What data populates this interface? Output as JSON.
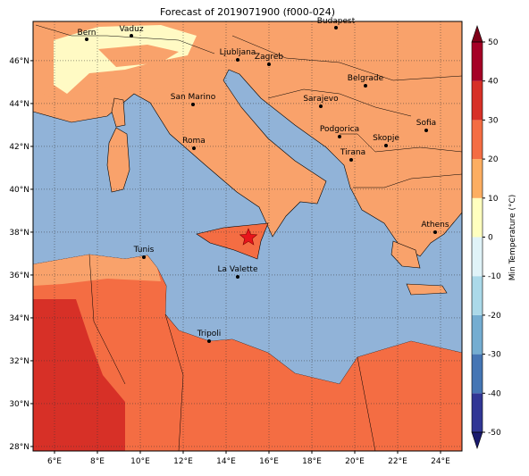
{
  "map": {
    "title": "Forecast of 2019071900 (f000-024)",
    "xlim": [
      5,
      25
    ],
    "ylim": [
      27.79,
      47.83
    ],
    "xticks": [
      {
        "value": 6,
        "label": "6°E"
      },
      {
        "value": 8,
        "label": "8°E"
      },
      {
        "value": 10,
        "label": "10°E"
      },
      {
        "value": 12,
        "label": "12°E"
      },
      {
        "value": 14,
        "label": "14°E"
      },
      {
        "value": 16,
        "label": "16°E"
      },
      {
        "value": 18,
        "label": "18°E"
      },
      {
        "value": 20,
        "label": "20°E"
      },
      {
        "value": 22,
        "label": "22°E"
      },
      {
        "value": 24,
        "label": "24°E"
      }
    ],
    "yticks": [
      {
        "value": 28,
        "label": "28°N"
      },
      {
        "value": 30,
        "label": "30°N"
      },
      {
        "value": 32,
        "label": "32°N"
      },
      {
        "value": 34,
        "label": "34°N"
      },
      {
        "value": 36,
        "label": "36°N"
      },
      {
        "value": 38,
        "label": "38°N"
      },
      {
        "value": 40,
        "label": "40°N"
      },
      {
        "value": 42,
        "label": "42°N"
      },
      {
        "value": 44,
        "label": "44°N"
      },
      {
        "value": 46,
        "label": "46°N"
      }
    ],
    "grid": true,
    "cities": [
      "Bern",
      "Vaduz",
      "Budapest",
      "Ljubljana",
      "Zagreb",
      "Belgrade",
      "San Marino",
      "Sarajevo",
      "Sofia",
      "Podgorica",
      "Skopje",
      "Roma",
      "Tirana",
      "Athens",
      "Tunis",
      "La Valette",
      "Tripoli"
    ]
  },
  "colorbar": {
    "label": "Min Temperature (°C)",
    "ticks": [
      -50,
      -40,
      -30,
      -20,
      -10,
      0,
      10,
      20,
      30,
      40,
      50
    ],
    "colors": [
      "#313695",
      "#4575b4",
      "#74add1",
      "#abd9e9",
      "#e0f3f8",
      "#ffffbf",
      "#fdae61",
      "#f46d43",
      "#d73027",
      "#a50026"
    ],
    "extend_colors": [
      "#1a1a6e",
      "#7f0019"
    ]
  }
}
